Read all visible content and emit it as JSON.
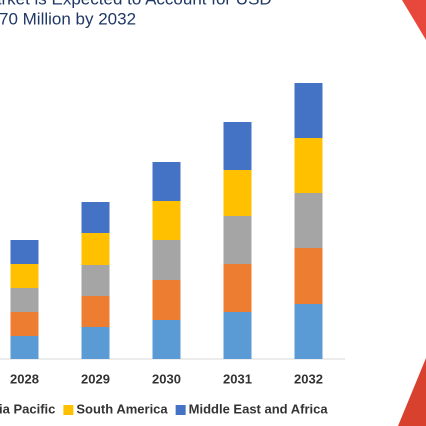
{
  "chart_data": {
    "type": "stacked_bar",
    "title_lines": [
      "arket is Expected to Account for USD",
      "70 Million by 2032"
    ],
    "categories": [
      "2028",
      "2029",
      "2030",
      "2031",
      "2032"
    ],
    "series": [
      {
        "color": "#5b9bd5",
        "values": [
          23,
          32,
          39,
          47,
          55
        ]
      },
      {
        "color": "#ed7d31",
        "values": [
          24,
          31,
          40,
          48,
          56
        ]
      },
      {
        "name": "ia Pacific",
        "color": "#a5a5a5",
        "values": [
          24,
          31,
          40,
          48,
          55
        ]
      },
      {
        "name": "South America",
        "color": "#ffc000",
        "values": [
          24,
          32,
          39,
          46,
          55
        ]
      },
      {
        "name": "Middle East and Africa",
        "color": "#4472c4",
        "values": [
          24,
          31,
          39,
          48,
          55
        ]
      }
    ],
    "ylim": [
      0,
      300
    ]
  }
}
